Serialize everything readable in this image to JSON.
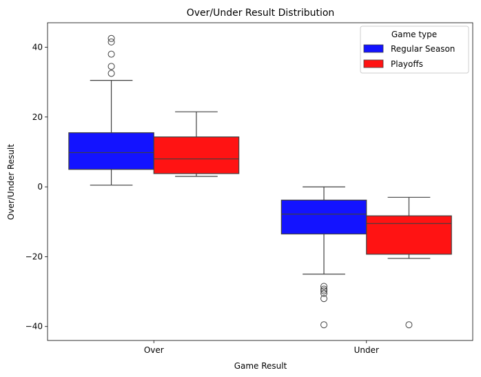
{
  "chart_data": {
    "type": "box",
    "title": "Over/Under Result Distribution",
    "xlabel": "Game Result",
    "ylabel": "Over/Under Result",
    "categories": [
      "Over",
      "Under"
    ],
    "ylim": [
      -44,
      47
    ],
    "yticks": [
      -40,
      -20,
      0,
      20,
      40
    ],
    "ytick_labels": [
      "−40",
      "−20",
      "0",
      "20",
      "40"
    ],
    "grid": false,
    "legend": {
      "title": "Game type",
      "position": "top-right"
    },
    "series": [
      {
        "name": "Regular Season",
        "color": "#1313ff",
        "boxes": [
          {
            "category": "Over",
            "whisker_low": 0.5,
            "q1": 5,
            "median": 9.8,
            "q3": 15.5,
            "whisker_high": 30.5,
            "outliers": [
              32.5,
              34.5,
              38,
              41.5,
              42.5
            ]
          },
          {
            "category": "Under",
            "whisker_low": -25,
            "q1": -13.5,
            "median": -7.8,
            "q3": -3.8,
            "whisker_high": 0,
            "outliers": [
              -28.5,
              -29.3,
              -29.8,
              -30.5,
              -32,
              -39.5
            ]
          }
        ]
      },
      {
        "name": "Playoffs",
        "color": "#ff1313",
        "boxes": [
          {
            "category": "Over",
            "whisker_low": 3,
            "q1": 3.8,
            "median": 8,
            "q3": 14.3,
            "whisker_high": 21.5,
            "outliers": []
          },
          {
            "category": "Under",
            "whisker_low": -20.5,
            "q1": -19.3,
            "median": -10.5,
            "q3": -8.3,
            "whisker_high": -3,
            "outliers": [
              -39.5
            ]
          }
        ]
      }
    ]
  }
}
